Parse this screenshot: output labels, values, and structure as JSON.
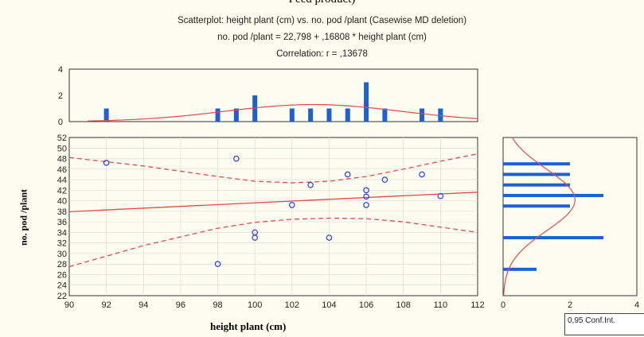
{
  "caption_cut": "Feed product)",
  "chart_data": [
    {
      "type": "scatter",
      "title": "Scatterplot: height plant (cm) vs. no. pod /plant (Casewise MD deletion)",
      "subtitle": "no. pod /plant = 22,798 + ,16808 * height plant (cm)",
      "correlation": "Correlation: r = ,13678",
      "xlabel": "height plant (cm)",
      "ylabel": "no. pod /plant",
      "xlim": [
        90,
        112
      ],
      "ylim": [
        22,
        52
      ],
      "xticks": [
        "90",
        "92",
        "94",
        "96",
        "98",
        "100",
        "102",
        "104",
        "106",
        "108",
        "110",
        "112"
      ],
      "yticks": [
        "22",
        "24",
        "26",
        "28",
        "30",
        "32",
        "34",
        "36",
        "38",
        "40",
        "42",
        "44",
        "46",
        "48",
        "50",
        "52"
      ],
      "points": [
        [
          92,
          47.2
        ],
        [
          98,
          28
        ],
        [
          99,
          48
        ],
        [
          100,
          34
        ],
        [
          100,
          33
        ],
        [
          102,
          39.2
        ],
        [
          103,
          43
        ],
        [
          104,
          33
        ],
        [
          105,
          45
        ],
        [
          106,
          42
        ],
        [
          106,
          40.8
        ],
        [
          106,
          39.2
        ],
        [
          107,
          44
        ],
        [
          109,
          45
        ],
        [
          110,
          40.9
        ]
      ],
      "regression": {
        "intercept": 22.798,
        "slope": 0.16808
      },
      "conf_band": {
        "x": [
          90,
          94,
          98,
          100,
          102,
          104,
          106,
          108,
          110,
          112
        ],
        "upper": [
          48.2,
          46.6,
          44.6,
          43.7,
          43.4,
          43.7,
          44.6,
          46.0,
          47.5,
          48.9
        ],
        "lower": [
          27.5,
          31.5,
          34.8,
          35.9,
          36.5,
          36.7,
          36.6,
          36.0,
          35.0,
          34.0
        ]
      },
      "legend_text": "0,95 Conf.Int."
    },
    {
      "type": "bar",
      "role": "x-histogram",
      "ylim": [
        0,
        4
      ],
      "yticks": [
        "0",
        "2",
        "4"
      ],
      "x": [
        92,
        98,
        99,
        100,
        102,
        103,
        104,
        105,
        106,
        107,
        109,
        110
      ],
      "values": [
        1,
        1,
        1,
        2,
        1,
        1,
        1,
        1,
        3,
        1,
        1,
        1
      ]
    },
    {
      "type": "bar",
      "role": "y-histogram",
      "xlim": [
        0,
        4
      ],
      "xticks": [
        "0",
        "2",
        "4"
      ],
      "y": [
        27,
        33,
        39,
        41,
        43,
        45,
        47
      ],
      "values": [
        1,
        3,
        2,
        3,
        2,
        2,
        2
      ]
    }
  ]
}
